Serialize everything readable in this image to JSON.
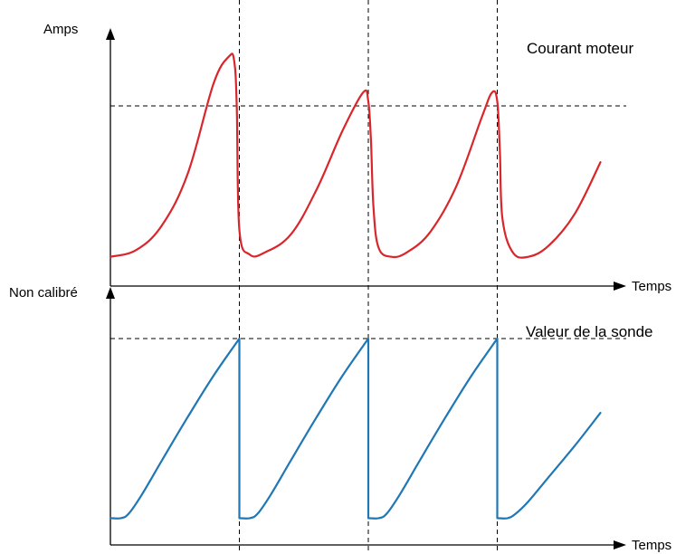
{
  "chart_data": [
    {
      "type": "line",
      "title": "Courant moteur",
      "ylabel": "Amps",
      "xlabel": "Temps",
      "line_color": "#d9262b",
      "series": [
        {
          "x": [
            0,
            0.05,
            0.1,
            0.15,
            0.2,
            0.23,
            0.24,
            0.245,
            0.25,
            0.27,
            0.3,
            0.35,
            0.4,
            0.45,
            0.49,
            0.5,
            0.505,
            0.51,
            0.52,
            0.545,
            0.575,
            0.62,
            0.67,
            0.72,
            0.74,
            0.75,
            0.755,
            0.76,
            0.78,
            0.81,
            0.85,
            0.9,
            0.95
          ],
          "y": [
            0.13,
            0.16,
            0.27,
            0.5,
            0.9,
            1.02,
            1.0,
            0.8,
            0.25,
            0.14,
            0.15,
            0.23,
            0.43,
            0.69,
            0.86,
            0.82,
            0.65,
            0.35,
            0.17,
            0.13,
            0.15,
            0.24,
            0.44,
            0.75,
            0.86,
            0.82,
            0.6,
            0.3,
            0.15,
            0.13,
            0.18,
            0.32,
            0.55
          ]
        }
      ],
      "reference_level": 0.8,
      "xlim": [
        0,
        1
      ],
      "ylim": [
        0,
        1.15
      ]
    },
    {
      "type": "line",
      "title": "Valeur de la sonde",
      "ylabel": "Non calibré",
      "xlabel": "Temps",
      "line_color": "#1f77b4",
      "series": [
        {
          "x": [
            0,
            0.02,
            0.035,
            0.06,
            0.1,
            0.15,
            0.2,
            0.25,
            0.25,
            0.27,
            0.285,
            0.31,
            0.35,
            0.4,
            0.45,
            0.5,
            0.5,
            0.52,
            0.535,
            0.56,
            0.6,
            0.65,
            0.7,
            0.75,
            0.75,
            0.77,
            0.785,
            0.81,
            0.85,
            0.9,
            0.95
          ],
          "y": [
            0.13,
            0.13,
            0.15,
            0.24,
            0.41,
            0.62,
            0.82,
            1.0,
            0.13,
            0.13,
            0.15,
            0.24,
            0.41,
            0.62,
            0.82,
            1.0,
            0.13,
            0.13,
            0.15,
            0.24,
            0.41,
            0.62,
            0.82,
            1.0,
            0.13,
            0.13,
            0.15,
            0.21,
            0.33,
            0.48,
            0.64
          ]
        }
      ],
      "reference_level": 1.0,
      "xlim": [
        0,
        1
      ],
      "ylim": [
        0,
        1.25
      ]
    }
  ],
  "cycle_boundaries": [
    0.25,
    0.5,
    0.75
  ],
  "colors": {
    "axis": "#000000",
    "dashed": "#000000"
  }
}
